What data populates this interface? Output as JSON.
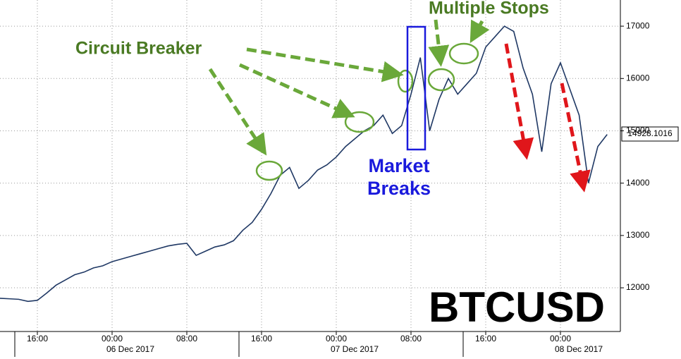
{
  "chart_data": {
    "type": "line",
    "title": "BTCUSD",
    "categories": [
      null,
      null,
      null,
      null,
      "16:00",
      null,
      null,
      null,
      null,
      null,
      null,
      null,
      "00:00",
      null,
      null,
      null,
      null,
      null,
      null,
      null,
      "08:00",
      null,
      null,
      null,
      null,
      null,
      null,
      null,
      "16:00",
      null,
      null,
      null,
      null,
      null,
      null,
      null,
      "00:00",
      null,
      null,
      null,
      null,
      null,
      null,
      null,
      "08:00",
      null,
      null,
      null,
      null,
      null,
      null,
      null,
      "16:00",
      null,
      null,
      null,
      null,
      null,
      null,
      null,
      "00:00",
      null,
      null,
      null,
      null,
      null
    ],
    "date_labels": [
      "06 Dec 2017",
      "07 Dec 2017",
      "08 Dec 2017"
    ],
    "values": [
      11800,
      11790,
      11780,
      11740,
      11760,
      11900,
      12050,
      12150,
      12250,
      12300,
      12380,
      12420,
      12500,
      12550,
      12600,
      12650,
      12700,
      12750,
      12800,
      12830,
      12850,
      12620,
      12700,
      12780,
      12820,
      12900,
      13100,
      13250,
      13500,
      13800,
      14150,
      14300,
      13900,
      14050,
      14250,
      14350,
      14500,
      14700,
      14850,
      15000,
      15100,
      15300,
      14950,
      15100,
      15700,
      16400,
      15000,
      15600,
      16000,
      15700,
      15900,
      16100,
      16600,
      16800,
      17000,
      16900,
      16200,
      15700,
      14600,
      15900,
      16300,
      15800,
      15300,
      14000,
      14700,
      14930
    ],
    "color": "#1f3864",
    "ylim": [
      11165,
      17500
    ],
    "yticks": [
      12000,
      13000,
      14000,
      15000,
      16000,
      17000
    ],
    "grid": true,
    "last_price_label": "14928.1016",
    "annotations": [
      "Circuit Breaker",
      "Multiple Stops",
      "Market",
      "Breaks"
    ]
  }
}
